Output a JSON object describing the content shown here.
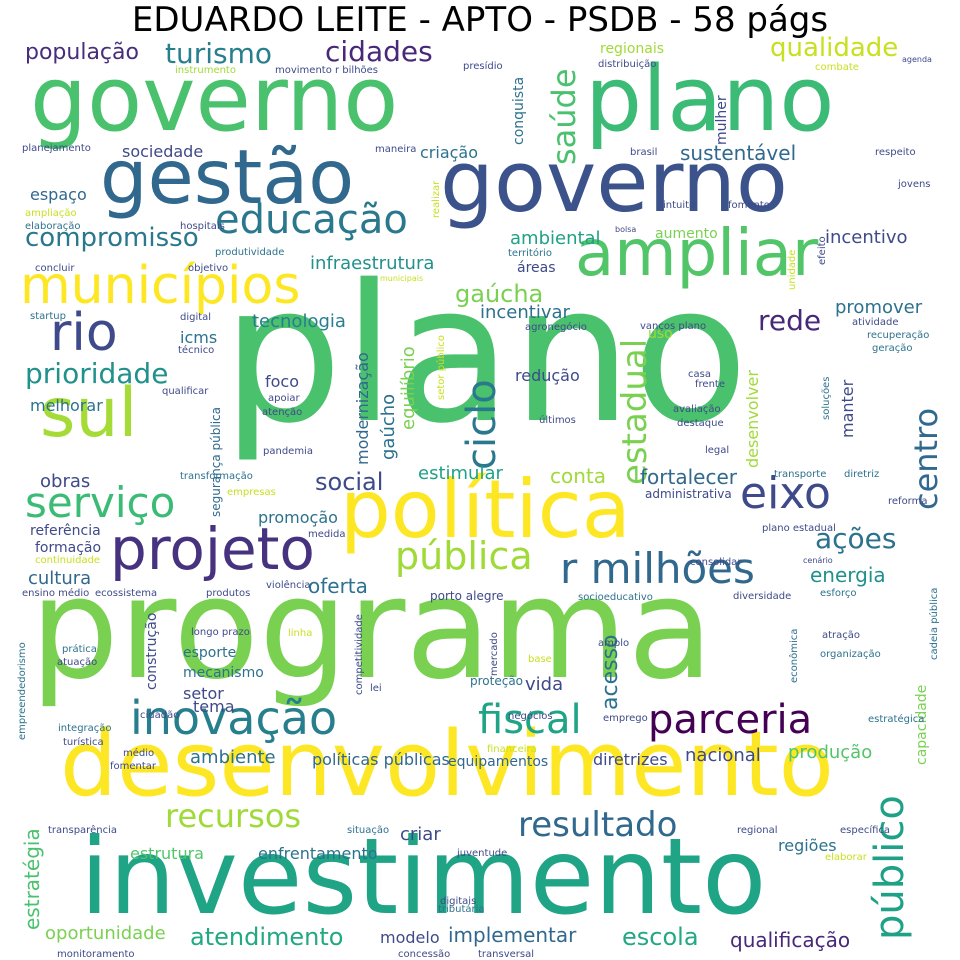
{
  "title": "EDUARDO LEITE - APTO - PSDB - 58 págs",
  "palette": {
    "purple": "#46327e",
    "blue": "#365c8d",
    "teal": "#277f8e",
    "green": "#1fa187",
    "lightgreen": "#4ac16d",
    "lime": "#a0da39",
    "yellow": "#fde725"
  },
  "words": [
    {
      "text": "plano",
      "color": "#4ac16d"
    },
    {
      "text": "programa",
      "color": "#7ad151"
    },
    {
      "text": "investimento",
      "color": "#20a486"
    },
    {
      "text": "desenvolvimento",
      "color": "#fde725"
    },
    {
      "text": "governo",
      "color": "#4ac16d"
    },
    {
      "text": "plano",
      "color": "#3bbb75"
    },
    {
      "text": "governo",
      "color": "#3b528b"
    },
    {
      "text": "gestão",
      "color": "#31688e"
    },
    {
      "text": "política",
      "color": "#fde725"
    },
    {
      "text": "ampliar",
      "color": "#52c569"
    },
    {
      "text": "sul",
      "color": "#a5db36"
    },
    {
      "text": "municípios",
      "color": "#fde725"
    },
    {
      "text": "projeto",
      "color": "#46327e"
    },
    {
      "text": "rio",
      "color": "#3e4a89"
    },
    {
      "text": "educação",
      "color": "#2a788e"
    },
    {
      "text": "pública",
      "color": "#a0da39"
    },
    {
      "text": "r milhões",
      "color": "#31688e"
    },
    {
      "text": "inovação",
      "color": "#277f8e"
    },
    {
      "text": "serviço",
      "color": "#3bbb75"
    },
    {
      "text": "eixo",
      "color": "#3e4a89"
    },
    {
      "text": "parceria",
      "color": "#440154"
    },
    {
      "text": "fiscal",
      "color": "#20a486"
    },
    {
      "text": "recursos",
      "color": "#a0da39"
    },
    {
      "text": "resultado",
      "color": "#31688e"
    },
    {
      "text": "público",
      "color": "#1fa187"
    },
    {
      "text": "ciclo",
      "color": "#2a788e"
    },
    {
      "text": "centro",
      "color": "#31688e"
    },
    {
      "text": "estadual",
      "color": "#7ad151"
    },
    {
      "text": "saúde",
      "color": "#4ac16d"
    },
    {
      "text": "qualidade",
      "color": "#c8e020"
    },
    {
      "text": "cidades",
      "color": "#482878"
    },
    {
      "text": "turismo",
      "color": "#277f8e"
    },
    {
      "text": "população",
      "color": "#472d7b"
    },
    {
      "text": "prioridade",
      "color": "#21918c"
    },
    {
      "text": "compromisso",
      "color": "#2a788e"
    },
    {
      "text": "social",
      "color": "#3e4a89"
    },
    {
      "text": "ações",
      "color": "#2c728e"
    },
    {
      "text": "gaúcha",
      "color": "#7ad151"
    },
    {
      "text": "rede",
      "color": "#482878"
    },
    {
      "text": "atendimento",
      "color": "#22a884"
    },
    {
      "text": "escola",
      "color": "#22a884"
    },
    {
      "text": "implementar",
      "color": "#31688e"
    },
    {
      "text": "oportunidade",
      "color": "#7ad151"
    },
    {
      "text": "estratégia",
      "color": "#4ac16d"
    },
    {
      "text": "qualificação",
      "color": "#482878"
    },
    {
      "text": "infraestrutura",
      "color": "#21918c"
    },
    {
      "text": "incentivo",
      "color": "#3e4a89"
    },
    {
      "text": "sustentável",
      "color": "#31688e"
    },
    {
      "text": "ambiental",
      "color": "#1fa187"
    },
    {
      "text": "fortalecer",
      "color": "#31688e"
    },
    {
      "text": "conta",
      "color": "#a0da39"
    },
    {
      "text": "energia",
      "color": "#21918c"
    },
    {
      "text": "oferta",
      "color": "#2c728e"
    },
    {
      "text": "cultura",
      "color": "#31688e"
    },
    {
      "text": "obras",
      "color": "#3e4a89"
    },
    {
      "text": "promover",
      "color": "#2c728e"
    },
    {
      "text": "tecnologia",
      "color": "#277f8e"
    },
    {
      "text": "incentivar",
      "color": "#2c728e"
    },
    {
      "text": "equilíbrio",
      "color": "#7ad151"
    },
    {
      "text": "gaúcho",
      "color": "#2c728e"
    },
    {
      "text": "modernização",
      "color": "#31688e"
    },
    {
      "text": "acesso",
      "color": "#2c728e"
    },
    {
      "text": "vida",
      "color": "#3e4a89"
    },
    {
      "text": "nacional",
      "color": "#3e4a89"
    },
    {
      "text": "produção",
      "color": "#52c569"
    },
    {
      "text": "ambiente",
      "color": "#2c728e"
    },
    {
      "text": "políticas públicas",
      "color": "#31688e"
    },
    {
      "text": "equipamentos",
      "color": "#31688e"
    },
    {
      "text": "diretrizes",
      "color": "#3e4a89"
    },
    {
      "text": "criar",
      "color": "#3e4a89"
    },
    {
      "text": "regiões",
      "color": "#2c728e"
    },
    {
      "text": "estrutura",
      "color": "#52c569"
    },
    {
      "text": "enfrentamento",
      "color": "#2c728e"
    },
    {
      "text": "modelo",
      "color": "#3e4a89"
    },
    {
      "text": "capacidade",
      "color": "#7ad151"
    },
    {
      "text": "esporte",
      "color": "#2c728e"
    },
    {
      "text": "setor",
      "color": "#3e4a89"
    },
    {
      "text": "tema",
      "color": "#3e4a89"
    },
    {
      "text": "mecanismo",
      "color": "#2c728e"
    },
    {
      "text": "construção",
      "color": "#3e4a89"
    },
    {
      "text": "sociedade",
      "color": "#3e4a89"
    },
    {
      "text": "criação",
      "color": "#2c728e"
    },
    {
      "text": "espaço",
      "color": "#31688e"
    },
    {
      "text": "melhorar",
      "color": "#2c728e"
    },
    {
      "text": "referência",
      "color": "#3e4a89"
    },
    {
      "text": "formação",
      "color": "#3e4a89"
    },
    {
      "text": "foco",
      "color": "#3e4a89"
    },
    {
      "text": "redução",
      "color": "#3e4a89"
    },
    {
      "text": "estimular",
      "color": "#1fa187"
    },
    {
      "text": "promoção",
      "color": "#2c728e"
    },
    {
      "text": "icms",
      "color": "#2c728e"
    },
    {
      "text": "uso",
      "color": "#a0da39"
    },
    {
      "text": "áreas",
      "color": "#3e4a89"
    },
    {
      "text": "aumento",
      "color": "#7ad151"
    },
    {
      "text": "manter",
      "color": "#3e4a89"
    },
    {
      "text": "desenvolver",
      "color": "#a0da39"
    },
    {
      "text": "conquista",
      "color": "#2c728e"
    },
    {
      "text": "mulher",
      "color": "#3e4a89"
    },
    {
      "text": "regionais",
      "color": "#a0da39"
    },
    {
      "text": "segurança pública",
      "color": "#31688e"
    },
    {
      "text": "porto alegre",
      "color": "#3e4a89"
    },
    {
      "text": "competitividade",
      "color": "#3e4a89"
    },
    {
      "text": "proteção",
      "color": "#2c728e"
    },
    {
      "text": "mercado",
      "color": "#3e4a89"
    },
    {
      "text": "instrumento",
      "color": "#a0da39"
    },
    {
      "text": "movimento",
      "color": "#3e4a89"
    },
    {
      "text": "r bilhões",
      "color": "#3e4a89"
    },
    {
      "text": "presídio",
      "color": "#3e4a89"
    },
    {
      "text": "distribuição",
      "color": "#3e4a89"
    },
    {
      "text": "combate",
      "color": "#c8e020"
    },
    {
      "text": "agenda",
      "color": "#3e4a89"
    },
    {
      "text": "planejamento",
      "color": "#3e4a89"
    },
    {
      "text": "ampliação",
      "color": "#c8e020"
    },
    {
      "text": "elaboração",
      "color": "#2c728e"
    },
    {
      "text": "concluir",
      "color": "#3e4a89"
    },
    {
      "text": "hospitais",
      "color": "#3e4a89"
    },
    {
      "text": "objetivo",
      "color": "#3e4a89"
    },
    {
      "text": "produtividade",
      "color": "#2c728e"
    },
    {
      "text": "maneira",
      "color": "#3e4a89"
    },
    {
      "text": "brasil",
      "color": "#3e4a89"
    },
    {
      "text": "respeito",
      "color": "#3e4a89"
    },
    {
      "text": "jovens",
      "color": "#3e4a89"
    },
    {
      "text": "intuito",
      "color": "#3e4a89"
    },
    {
      "text": "fomento",
      "color": "#3e4a89"
    },
    {
      "text": "bolsa",
      "color": "#3e4a89"
    },
    {
      "text": "território",
      "color": "#2c728e"
    },
    {
      "text": "municipais",
      "color": "#c8e020"
    },
    {
      "text": "startup",
      "color": "#2c728e"
    },
    {
      "text": "digital",
      "color": "#3e4a89"
    },
    {
      "text": "técnico",
      "color": "#3e4a89"
    },
    {
      "text": "qualificar",
      "color": "#3e4a89"
    },
    {
      "text": "agronegócio",
      "color": "#3e4a89"
    },
    {
      "text": "vanços plano",
      "color": "#3e4a89"
    },
    {
      "text": "atividade",
      "color": "#3e4a89"
    },
    {
      "text": "recuperação",
      "color": "#2c728e"
    },
    {
      "text": "geração",
      "color": "#2c728e"
    },
    {
      "text": "apoiar",
      "color": "#3e4a89"
    },
    {
      "text": "atenção",
      "color": "#3e4a89"
    },
    {
      "text": "casa",
      "color": "#3e4a89"
    },
    {
      "text": "frente",
      "color": "#3e4a89"
    },
    {
      "text": "avaliação",
      "color": "#3e4a89"
    },
    {
      "text": "destaque",
      "color": "#3e4a89"
    },
    {
      "text": "últimos",
      "color": "#3e4a89"
    },
    {
      "text": "legal",
      "color": "#3e4a89"
    },
    {
      "text": "pandemia",
      "color": "#3e4a89"
    },
    {
      "text": "transformação",
      "color": "#2c728e"
    },
    {
      "text": "empresas",
      "color": "#c8e020"
    },
    {
      "text": "administrativa",
      "color": "#3e4a89"
    },
    {
      "text": "transporte",
      "color": "#2c728e"
    },
    {
      "text": "diretriz",
      "color": "#2c728e"
    },
    {
      "text": "reforma",
      "color": "#3e4a89"
    },
    {
      "text": "plano estadual",
      "color": "#3e4a89"
    },
    {
      "text": "medida",
      "color": "#3e4a89"
    },
    {
      "text": "consolidar",
      "color": "#3e4a89"
    },
    {
      "text": "cenário",
      "color": "#3e4a89"
    },
    {
      "text": "continuidade",
      "color": "#c8e020"
    },
    {
      "text": "ensino médio",
      "color": "#3e4a89"
    },
    {
      "text": "ecossistema",
      "color": "#3e4a89"
    },
    {
      "text": "produtos",
      "color": "#3e4a89"
    },
    {
      "text": "violência",
      "color": "#3e4a89"
    },
    {
      "text": "socioeducativo",
      "color": "#2c728e"
    },
    {
      "text": "diversidade",
      "color": "#3e4a89"
    },
    {
      "text": "esforço",
      "color": "#2c728e"
    },
    {
      "text": "longo prazo",
      "color": "#3e4a89"
    },
    {
      "text": "linha",
      "color": "#c8e020"
    },
    {
      "text": "prática",
      "color": "#2c728e"
    },
    {
      "text": "atuação",
      "color": "#3e4a89"
    },
    {
      "text": "amplo",
      "color": "#3e4a89"
    },
    {
      "text": "atração",
      "color": "#3e4a89"
    },
    {
      "text": "organização",
      "color": "#2c728e"
    },
    {
      "text": "base",
      "color": "#c8e020"
    },
    {
      "text": "lei",
      "color": "#3e4a89"
    },
    {
      "text": "cidadão",
      "color": "#3e4a89"
    },
    {
      "text": "integração",
      "color": "#2c728e"
    },
    {
      "text": "turística",
      "color": "#3e4a89"
    },
    {
      "text": "médio",
      "color": "#3e4a89"
    },
    {
      "text": "fomentar",
      "color": "#3e4a89"
    },
    {
      "text": "negócios",
      "color": "#3e4a89"
    },
    {
      "text": "emprego",
      "color": "#3e4a89"
    },
    {
      "text": "estratégica",
      "color": "#2c728e"
    },
    {
      "text": "financeira",
      "color": "#c8e020"
    },
    {
      "text": "transparência",
      "color": "#3e4a89"
    },
    {
      "text": "situação",
      "color": "#2c728e"
    },
    {
      "text": "regional",
      "color": "#3e4a89"
    },
    {
      "text": "específica",
      "color": "#3e4a89"
    },
    {
      "text": "elaborar",
      "color": "#c8e020"
    },
    {
      "text": "juventude",
      "color": "#3e4a89"
    },
    {
      "text": "digitais",
      "color": "#3e4a89"
    },
    {
      "text": "tributária",
      "color": "#2c728e"
    },
    {
      "text": "monitoramento",
      "color": "#3e4a89"
    },
    {
      "text": "concessão",
      "color": "#3e4a89"
    },
    {
      "text": "transversal",
      "color": "#3e4a89"
    },
    {
      "text": "empreendedorismo",
      "color": "#2c728e"
    },
    {
      "text": "cadeia pública",
      "color": "#2c728e"
    },
    {
      "text": "econômica",
      "color": "#2c728e"
    },
    {
      "text": "unidade",
      "color": "#c8e020"
    },
    {
      "text": "efeito",
      "color": "#3e4a89"
    },
    {
      "text": "realizar",
      "color": "#c8e020"
    },
    {
      "text": "setor público",
      "color": "#c8e020"
    },
    {
      "text": "soluções",
      "color": "#2c728e"
    }
  ]
}
